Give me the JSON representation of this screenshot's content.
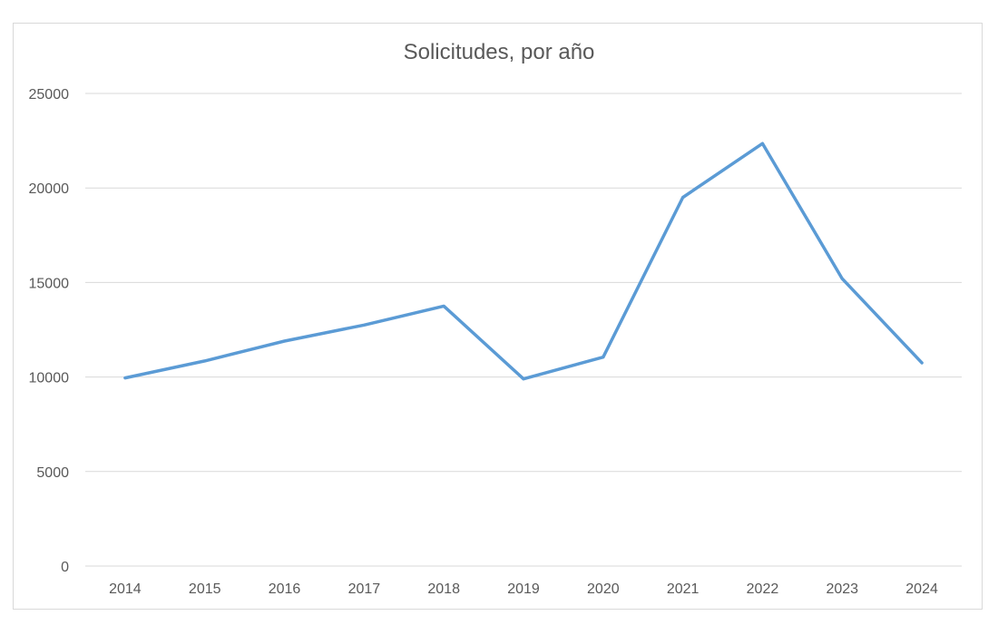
{
  "chart_data": {
    "type": "line",
    "title": "Solicitudes, por año",
    "xlabel": "",
    "ylabel": "",
    "categories": [
      "2014",
      "2015",
      "2016",
      "2017",
      "2018",
      "2019",
      "2020",
      "2021",
      "2022",
      "2023",
      "2024"
    ],
    "series": [
      {
        "values": [
          9950,
          10850,
          11900,
          12750,
          13750,
          9900,
          11050,
          19500,
          22350,
          15200,
          10750
        ],
        "color": "#5b9bd5"
      }
    ],
    "ylim": [
      0,
      25000
    ],
    "yticks": [
      "0",
      "5000",
      "10000",
      "15000",
      "20000",
      "25000"
    ],
    "grid": true,
    "legend": "none",
    "colors": {
      "line": "#5b9bd5",
      "grid": "#d9d9d9",
      "text": "#595959",
      "border": "#d9d9d9"
    }
  }
}
